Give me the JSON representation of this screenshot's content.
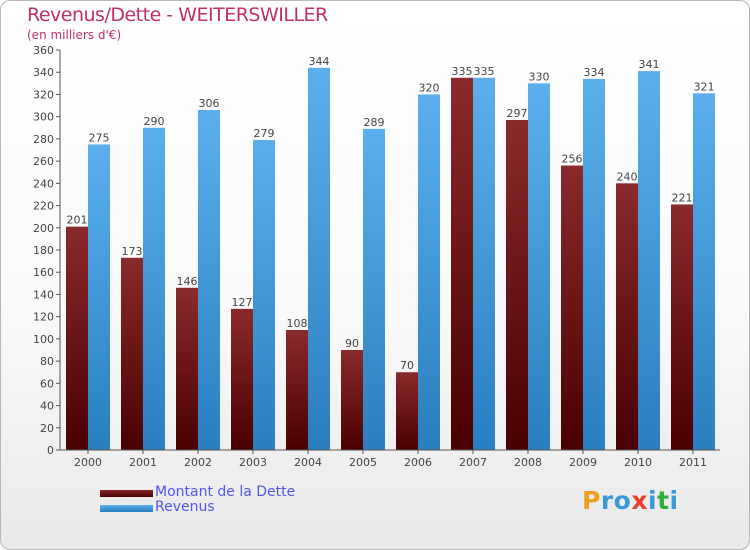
{
  "chart_data": {
    "type": "bar",
    "title": "Revenus/Dette - WEITERSWILLER",
    "subtitle": "(en milliers d'€)",
    "categories": [
      "2000",
      "2001",
      "2002",
      "2003",
      "2004",
      "2005",
      "2006",
      "2007",
      "2008",
      "2009",
      "2010",
      "2011"
    ],
    "series": [
      {
        "name": "Montant de la Dette",
        "color": "#7a1f24",
        "values": [
          201,
          173,
          146,
          127,
          108,
          90,
          70,
          335,
          297,
          256,
          240,
          221
        ]
      },
      {
        "name": "Revenus",
        "color": "#4aa3e8",
        "values": [
          275,
          290,
          306,
          279,
          344,
          289,
          320,
          335,
          330,
          334,
          341,
          321
        ]
      }
    ],
    "ylim": [
      0,
      360
    ],
    "ytick_step": 20,
    "grid": false,
    "legend_position": "bottom-left"
  },
  "logo": {
    "text": "Proxiti",
    "letters": [
      {
        "ch": "P",
        "color": "#f0a020"
      },
      {
        "ch": "r",
        "color": "#3a9ad9"
      },
      {
        "ch": "o",
        "color": "#3a9ad9"
      },
      {
        "ch": "x",
        "color": "#e8402a"
      },
      {
        "ch": "i",
        "color": "#3a9ad9"
      },
      {
        "ch": "t",
        "color": "#2fae3a"
      },
      {
        "ch": "i",
        "color": "#3a9ad9"
      }
    ]
  }
}
